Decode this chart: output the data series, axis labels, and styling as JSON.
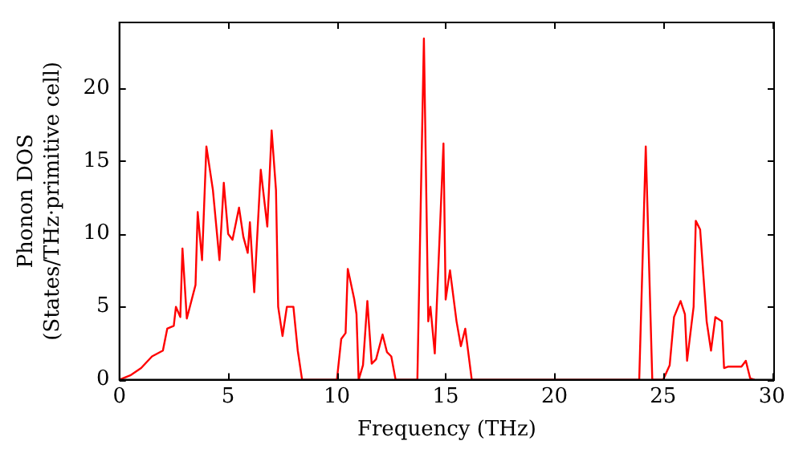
{
  "chart_data": {
    "type": "line",
    "xlabel": "Frequency (THz)",
    "ylabel": "Phonon DOS\n(States/THz·primitive cell)",
    "xlim": [
      0,
      30.1
    ],
    "ylim": [
      0,
      24.5
    ],
    "xticks": [
      0,
      5,
      10,
      15,
      20,
      25,
      30
    ],
    "yticks": [
      0,
      5,
      10,
      15,
      20
    ],
    "grid": false,
    "legend": false,
    "marker": "none",
    "line_style": "solid",
    "series": [
      {
        "color": "#ff0000",
        "x": [
          0,
          0.5,
          1,
          1.5,
          2,
          2.2,
          2.5,
          2.6,
          2.8,
          2.9,
          3.1,
          3.5,
          3.6,
          3.8,
          4.0,
          4.3,
          4.6,
          4.8,
          5.0,
          5.2,
          5.5,
          5.7,
          5.9,
          6.0,
          6.2,
          6.5,
          6.8,
          7.0,
          7.2,
          7.3,
          7.5,
          7.7,
          8.0,
          8.2,
          8.4,
          10,
          10.2,
          10.4,
          10.5,
          10.8,
          10.9,
          11.0,
          11.2,
          11.4,
          11.6,
          11.8,
          12.1,
          12.3,
          12.5,
          12.7,
          13.7,
          14.0,
          14.2,
          14.3,
          14.5,
          14.9,
          15.0,
          15.2,
          15.5,
          15.7,
          15.9,
          16.2,
          23.9,
          24.2,
          24.5,
          25.0,
          25.3,
          25.5,
          25.8,
          26.0,
          26.1,
          26.4,
          26.5,
          26.7,
          27.0,
          27.2,
          27.4,
          27.7,
          27.8,
          28.0,
          28.6,
          28.8,
          29.0,
          29.2
        ],
        "values": [
          0,
          0.3,
          0.8,
          1.6,
          2.0,
          3.5,
          3.7,
          5,
          4.3,
          9,
          4.2,
          6.5,
          11.5,
          8.2,
          16,
          13,
          8.2,
          13.5,
          10,
          9.6,
          11.8,
          9.8,
          8.7,
          10.8,
          6,
          14.4,
          10.5,
          17.1,
          13,
          5,
          3,
          5,
          5,
          2,
          0,
          0,
          2.8,
          3.2,
          7.6,
          5.5,
          4.5,
          0,
          1,
          5.4,
          1.1,
          1.4,
          3.1,
          1.9,
          1.6,
          0,
          0,
          23.4,
          4,
          5,
          1.8,
          16.2,
          5.5,
          7.5,
          4,
          2.3,
          3.5,
          0,
          0,
          16,
          0,
          0,
          1,
          4.3,
          5.4,
          4.5,
          1.3,
          5,
          10.9,
          10.3,
          4,
          2,
          4.3,
          4,
          0.8,
          0.9,
          0.9,
          1.3,
          0.1,
          0
        ]
      }
    ]
  }
}
